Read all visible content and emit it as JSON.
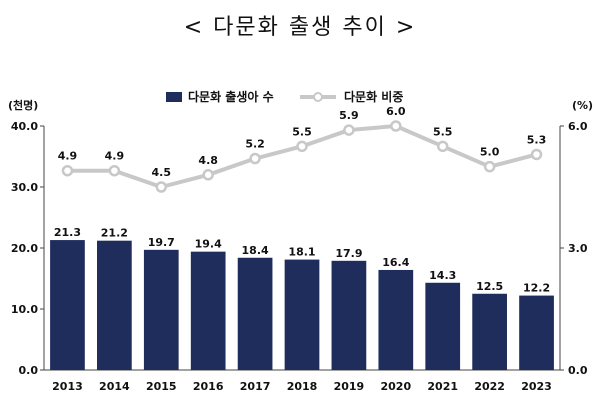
{
  "chart_data": {
    "type": "bar",
    "title": "< 다문화 출생 추이 >",
    "categories": [
      "2013",
      "2014",
      "2015",
      "2016",
      "2017",
      "2018",
      "2019",
      "2020",
      "2021",
      "2022",
      "2023"
    ],
    "series": [
      {
        "name": "다문화 출생아 수",
        "type": "bar",
        "axis": "left",
        "color": "#1f2d5c",
        "values": [
          21.3,
          21.2,
          19.7,
          19.4,
          18.4,
          18.1,
          17.9,
          16.4,
          14.3,
          12.5,
          12.2
        ],
        "labels": [
          "21.3",
          "21.2",
          "19.7",
          "19.4",
          "18.4",
          "18.1",
          "17.9",
          "16.4",
          "14.3",
          "12.5",
          "12.2"
        ]
      },
      {
        "name": "다문화 비중",
        "type": "line",
        "axis": "right",
        "color": "#c8c8c8",
        "values": [
          4.9,
          4.9,
          4.5,
          4.8,
          5.2,
          5.5,
          5.9,
          6.0,
          5.5,
          5.0,
          5.3
        ],
        "labels": [
          "4.9",
          "4.9",
          "4.5",
          "4.8",
          "5.2",
          "5.5",
          "5.9",
          "6.0",
          "5.5",
          "5.0",
          "5.3"
        ]
      }
    ],
    "left_axis": {
      "unit": "(천명)",
      "ylim": [
        0,
        40
      ],
      "ticks": [
        0,
        10,
        20,
        30,
        40
      ],
      "tick_labels": [
        "0.0",
        "10.0",
        "20.0",
        "30.0",
        "40.0"
      ]
    },
    "right_axis": {
      "unit": "(%)",
      "ylim": [
        0,
        6
      ],
      "ticks": [
        0,
        3,
        6
      ],
      "tick_labels": [
        "0.0",
        "3.0",
        "6.0"
      ]
    },
    "grid": false,
    "legend_position": "top"
  }
}
